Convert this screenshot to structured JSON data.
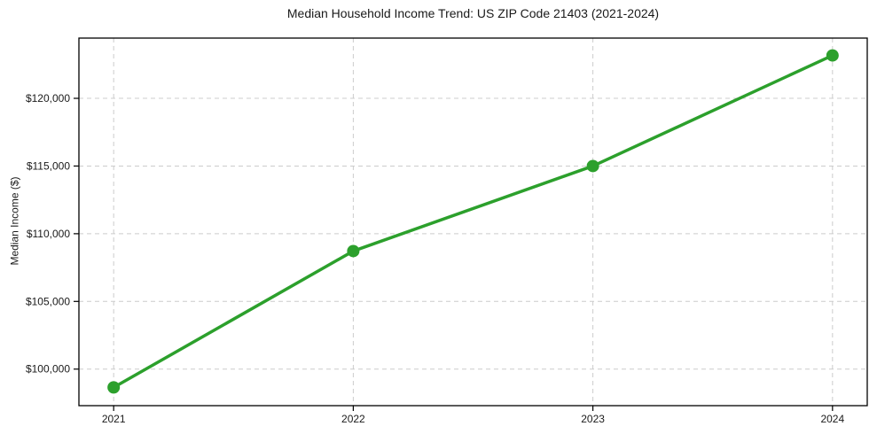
{
  "figure": {
    "background": "#ffffff",
    "title": "Median Household Income Trend: US ZIP Code 21403 (2021-2024)"
  },
  "chart_data": {
    "type": "line",
    "title": "Median Household Income Trend: US ZIP Code 21403 (2021-2024)",
    "xlabel": "",
    "ylabel": "Median Income ($)",
    "x": [
      2021,
      2022,
      2023,
      2024
    ],
    "x_tick_labels": [
      "2021",
      "2022",
      "2023",
      "2024"
    ],
    "series": [
      {
        "name": "Median household income",
        "values": [
          98650,
          108720,
          115000,
          123170
        ],
        "color": "#2ca02c",
        "marker": "circle"
      }
    ],
    "y_ticks": [
      100000,
      105000,
      110000,
      115000,
      120000
    ],
    "y_tick_labels": [
      "$100,000",
      "$105,000",
      "$110,000",
      "$115,000",
      "$120,000"
    ],
    "xlim": [
      2020.855,
      2024.145
    ],
    "ylim": [
      97300,
      124450
    ],
    "grid": "dashed-both-axes",
    "grid_color": "#cccccc",
    "spine_color": "#000000",
    "legend": "none"
  }
}
